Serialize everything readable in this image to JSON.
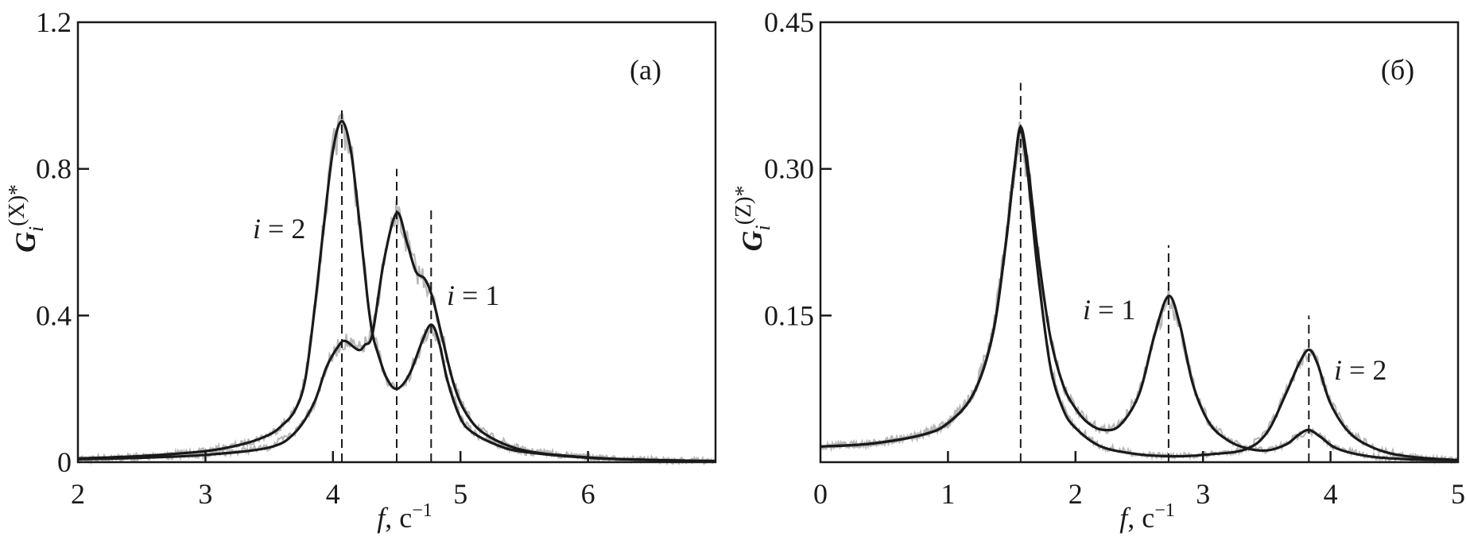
{
  "chart_data": [
    {
      "type": "line",
      "panel_label": "(a)",
      "xlabel": "f, c−1",
      "xlabel_parts": {
        "var": "f",
        "unit": "c",
        "exp": "−1"
      },
      "ylabel_parts": {
        "base": "G",
        "sub": "i",
        "sup": "(X)*"
      },
      "xlim": [
        2,
        7
      ],
      "ylim": [
        0,
        1.2
      ],
      "xticks": [
        2,
        3,
        4,
        5,
        6
      ],
      "xtick_labels": [
        "2",
        "3",
        "4",
        "5",
        "6"
      ],
      "yticks": [
        0,
        0.4,
        0.8,
        1.2
      ],
      "ytick_labels": [
        "0",
        "0.4",
        "0.8",
        "1.2"
      ],
      "grid": false,
      "measured_color": "#b8b8b8",
      "fit_color": "#1a1a1a",
      "resonance_lines": [
        {
          "x": 4.07,
          "top": 0.97
        },
        {
          "x": 4.5,
          "top": 0.8
        },
        {
          "x": 4.77,
          "top": 0.69
        }
      ],
      "series": [
        {
          "label": "i = 2",
          "label_parts": {
            "var": "i",
            "rest": " = 2"
          },
          "x": [
            2,
            2.5,
            3,
            3.3,
            3.5,
            3.6,
            3.7,
            3.78,
            3.85,
            3.92,
            4.0,
            4.07,
            4.14,
            4.2,
            4.27,
            4.31,
            4.35,
            4.42,
            4.5,
            4.6,
            4.7,
            4.77,
            4.83,
            4.9,
            5.0,
            5.1,
            5.3,
            5.5,
            6.0,
            6.5,
            7.0
          ],
          "y": [
            0.01,
            0.017,
            0.03,
            0.05,
            0.075,
            0.1,
            0.14,
            0.22,
            0.4,
            0.62,
            0.85,
            0.93,
            0.85,
            0.68,
            0.45,
            0.35,
            0.3,
            0.23,
            0.2,
            0.24,
            0.33,
            0.375,
            0.33,
            0.22,
            0.12,
            0.08,
            0.045,
            0.028,
            0.012,
            0.006,
            0.003
          ]
        },
        {
          "label": "i = 1",
          "label_parts": {
            "var": "i",
            "rest": " = 1"
          },
          "x": [
            2,
            2.5,
            3,
            3.5,
            3.7,
            3.85,
            3.95,
            4.05,
            4.1,
            4.2,
            4.25,
            4.31,
            4.4,
            4.5,
            4.58,
            4.65,
            4.72,
            4.78,
            4.85,
            4.95,
            5.05,
            5.2,
            5.5,
            6.0,
            6.5,
            7.0
          ],
          "y": [
            0.008,
            0.012,
            0.02,
            0.04,
            0.08,
            0.16,
            0.26,
            0.32,
            0.33,
            0.306,
            0.32,
            0.35,
            0.55,
            0.68,
            0.6,
            0.52,
            0.5,
            0.45,
            0.35,
            0.21,
            0.13,
            0.075,
            0.032,
            0.013,
            0.006,
            0.003
          ]
        }
      ],
      "annotations": [
        {
          "series": "i = 2"
        },
        {
          "series": "i = 1"
        }
      ]
    },
    {
      "type": "line",
      "panel_label": "(б)",
      "xlabel": "f, c−1",
      "xlabel_parts": {
        "var": "f",
        "unit": "c",
        "exp": "−1"
      },
      "ylabel_parts": {
        "base": "G",
        "sub": "i",
        "sup": "(Z)*"
      },
      "xlim": [
        0,
        5
      ],
      "ylim": [
        0,
        0.45
      ],
      "xticks": [
        0,
        1,
        2,
        3,
        4,
        5
      ],
      "xtick_labels": [
        "0",
        "1",
        "2",
        "3",
        "4",
        "5"
      ],
      "yticks": [
        0.15,
        0.3,
        0.45
      ],
      "ytick_labels": [
        "0.15",
        "0.30",
        "0.45"
      ],
      "grid": false,
      "measured_color": "#b8b8b8",
      "fit_color": "#1a1a1a",
      "resonance_lines": [
        {
          "x": 1.57,
          "top": 0.388
        },
        {
          "x": 2.73,
          "top": 0.222
        },
        {
          "x": 3.83,
          "top": 0.15
        }
      ],
      "series": [
        {
          "label": "i = 1",
          "label_parts": {
            "var": "i",
            "rest": " = 1"
          },
          "x": [
            0,
            0.4,
            0.8,
            1.0,
            1.2,
            1.35,
            1.45,
            1.52,
            1.57,
            1.63,
            1.7,
            1.8,
            1.9,
            2.0,
            2.1,
            2.22,
            2.35,
            2.5,
            2.62,
            2.73,
            2.82,
            2.92,
            3.05,
            3.2,
            3.35,
            3.5,
            3.65,
            3.75,
            3.83,
            3.92,
            4.05,
            4.3,
            4.6,
            5.0
          ],
          "y": [
            0.016,
            0.019,
            0.028,
            0.04,
            0.07,
            0.13,
            0.22,
            0.3,
            0.343,
            0.3,
            0.22,
            0.13,
            0.08,
            0.055,
            0.04,
            0.033,
            0.038,
            0.07,
            0.13,
            0.17,
            0.14,
            0.08,
            0.04,
            0.022,
            0.014,
            0.012,
            0.018,
            0.028,
            0.033,
            0.026,
            0.014,
            0.006,
            0.003,
            0.002
          ]
        },
        {
          "label": "i = 2",
          "label_parts": {
            "var": "i",
            "rest": " = 2"
          },
          "x": [
            0,
            0.4,
            0.8,
            1.0,
            1.2,
            1.35,
            1.45,
            1.52,
            1.57,
            1.63,
            1.7,
            1.8,
            1.9,
            2.0,
            2.2,
            2.5,
            2.8,
            3.05,
            3.33,
            3.5,
            3.65,
            3.75,
            3.83,
            3.9,
            4.0,
            4.15,
            4.35,
            4.6,
            5.0
          ],
          "y": [
            0.016,
            0.019,
            0.028,
            0.04,
            0.07,
            0.13,
            0.22,
            0.3,
            0.34,
            0.29,
            0.2,
            0.1,
            0.055,
            0.035,
            0.016,
            0.008,
            0.006,
            0.008,
            0.013,
            0.03,
            0.07,
            0.1,
            0.115,
            0.1,
            0.06,
            0.03,
            0.014,
            0.006,
            0.002
          ]
        }
      ],
      "annotations": [
        {
          "series": "i = 1"
        },
        {
          "series": "i = 2"
        }
      ]
    }
  ]
}
